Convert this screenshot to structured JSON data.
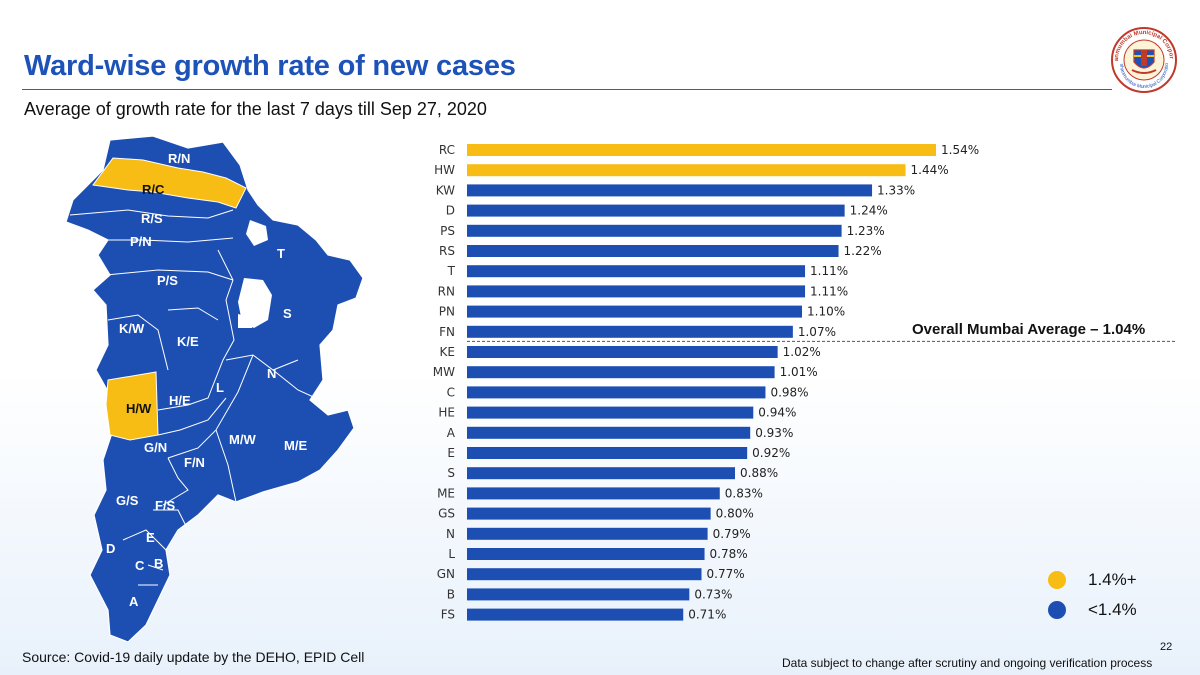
{
  "header": {
    "title": "Ward-wise growth rate of new cases",
    "subtitle": "Average of growth rate for the last 7 days till Sep 27, 2020"
  },
  "logo": {
    "icon": "bmc-emblem-icon",
    "arc_text": "Brihanmumbai Municipal Corporation",
    "colors": [
      "#c0392b",
      "#1d52b8",
      "#f5c518"
    ]
  },
  "map": {
    "wards": [
      "R/N",
      "R/C",
      "R/S",
      "P/N",
      "P/S",
      "K/W",
      "K/E",
      "H/W",
      "H/E",
      "L",
      "N",
      "S",
      "T",
      "G/N",
      "F/N",
      "M/W",
      "M/E",
      "G/S",
      "F/S",
      "D",
      "E",
      "C",
      "B",
      "A"
    ],
    "highlighted": [
      "R/C",
      "H/W"
    ]
  },
  "chart_data": {
    "type": "bar",
    "orientation": "horizontal",
    "categories": [
      "RC",
      "HW",
      "KW",
      "D",
      "PS",
      "RS",
      "T",
      "RN",
      "PN",
      "FN",
      "KE",
      "MW",
      "C",
      "HE",
      "A",
      "E",
      "S",
      "ME",
      "GS",
      "N",
      "L",
      "GN",
      "B",
      "FS"
    ],
    "values": [
      1.54,
      1.44,
      1.33,
      1.24,
      1.23,
      1.22,
      1.11,
      1.11,
      1.1,
      1.07,
      1.02,
      1.01,
      0.98,
      0.94,
      0.93,
      0.92,
      0.88,
      0.83,
      0.8,
      0.79,
      0.78,
      0.77,
      0.73,
      0.71
    ],
    "value_labels": [
      "1.54%",
      "1.44%",
      "1.33%",
      "1.24%",
      "1.23%",
      "1.22%",
      "1.11%",
      "1.11%",
      "1.10%",
      "1.07%",
      "1.02%",
      "1.01%",
      "0.98%",
      "0.94%",
      "0.93%",
      "0.92%",
      "0.88%",
      "0.83%",
      "0.80%",
      "0.79%",
      "0.78%",
      "0.77%",
      "0.73%",
      "0.71%"
    ],
    "unit": "%",
    "threshold": 1.4,
    "colors": {
      "above": "#f7bd14",
      "below": "#1d4fb3"
    },
    "average": {
      "value": 1.04,
      "label": "Overall Mumbai Average – 1.04%"
    },
    "xlim": [
      0,
      1.54
    ]
  },
  "legend": {
    "items": [
      {
        "label": "1.4%+",
        "color": "#f7bd14"
      },
      {
        "label": "<1.4%",
        "color": "#1d4fb3"
      }
    ]
  },
  "footer": {
    "source": "Source: Covid-19 daily update by the DEHO, EPID Cell",
    "page_number": "22",
    "disclaimer": "Data subject to change after scrutiny and ongoing verification process"
  }
}
